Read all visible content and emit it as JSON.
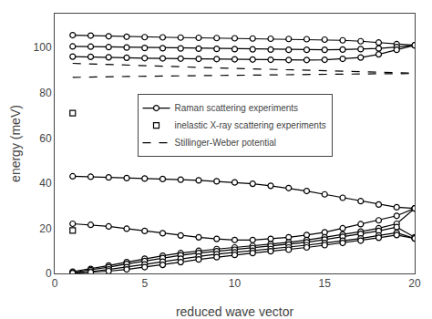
{
  "chart_data": {
    "type": "line",
    "xlabel": "reduced wave vector",
    "ylabel": "energy (meV)",
    "xlim": [
      0,
      20
    ],
    "ylim": [
      0,
      115
    ],
    "xticks": [
      0,
      5,
      10,
      15,
      20
    ],
    "yticks": [
      0,
      20,
      40,
      60,
      80,
      100
    ],
    "grid": false,
    "legend": "center",
    "color": "#000000",
    "series": [
      {
        "name": "Raman scattering experiments",
        "type": "line",
        "marker": "circle",
        "line_style": "solid",
        "x": [
          1,
          2,
          3,
          4,
          5,
          6,
          7,
          8,
          9,
          10,
          11,
          12,
          13,
          14,
          15,
          16,
          17,
          18,
          19,
          20
        ],
        "values": [
          105.5,
          105.3,
          105.0,
          104.8,
          104.6,
          104.5,
          104.4,
          104.3,
          104.2,
          104.1,
          104.0,
          103.9,
          103.8,
          103.7,
          103.5,
          103.2,
          102.8,
          102.2,
          101.5,
          101.0
        ]
      },
      {
        "name": "Raman scattering experiments",
        "type": "line",
        "marker": "circle",
        "line_style": "solid",
        "x": [
          1,
          2,
          3,
          4,
          5,
          6,
          7,
          8,
          9,
          10,
          11,
          12,
          13,
          14,
          15,
          16,
          17,
          18,
          19,
          20
        ],
        "values": [
          100.5,
          100.4,
          100.2,
          100.0,
          99.8,
          99.7,
          99.6,
          99.5,
          99.4,
          99.3,
          99.2,
          99.1,
          99.0,
          99.0,
          99.0,
          99.1,
          99.3,
          99.6,
          100.2,
          101.0
        ]
      },
      {
        "name": "Raman scattering experiments",
        "type": "line",
        "marker": "circle",
        "line_style": "solid",
        "x": [
          1,
          2,
          3,
          4,
          5,
          6,
          7,
          8,
          9,
          10,
          11,
          12,
          13,
          14,
          15,
          16,
          17,
          18,
          19,
          20
        ],
        "values": [
          96.0,
          95.9,
          95.7,
          95.5,
          95.3,
          95.2,
          95.1,
          95.0,
          94.9,
          94.8,
          94.7,
          94.6,
          94.5,
          94.5,
          94.6,
          95.0,
          95.6,
          97.0,
          99.0,
          101.0
        ]
      },
      {
        "name": "Raman scattering experiments",
        "type": "line",
        "marker": "circle",
        "line_style": "solid",
        "x": [
          1,
          2,
          3,
          4,
          5,
          6,
          7,
          8,
          9,
          10,
          11,
          12,
          13,
          14,
          15,
          16,
          17,
          18,
          19,
          20
        ],
        "values": [
          43.0,
          42.8,
          42.5,
          42.2,
          42.0,
          41.8,
          41.5,
          41.2,
          40.8,
          40.3,
          39.7,
          38.8,
          37.8,
          36.5,
          35.0,
          33.5,
          32.0,
          30.5,
          29.3,
          28.8
        ]
      },
      {
        "name": "Raman scattering experiments",
        "type": "line",
        "marker": "circle",
        "line_style": "solid",
        "x": [
          1,
          2,
          3,
          4,
          5,
          6,
          7,
          8,
          9,
          10,
          11,
          12,
          13,
          14,
          15,
          16,
          17,
          18,
          19,
          20
        ],
        "values": [
          22.0,
          21.5,
          20.8,
          19.8,
          18.8,
          17.8,
          16.8,
          16.0,
          15.3,
          14.8,
          14.8,
          15.3,
          16.0,
          17.0,
          18.2,
          20.0,
          21.8,
          23.5,
          25.5,
          28.8
        ]
      },
      {
        "name": "Raman scattering experiments",
        "type": "line",
        "marker": "circle",
        "line_style": "solid",
        "x": [
          1,
          2,
          3,
          4,
          5,
          6,
          7,
          8,
          9,
          10,
          11,
          12,
          13,
          14,
          15,
          16,
          17,
          18,
          19,
          20
        ],
        "values": [
          0.8,
          2.0,
          3.5,
          5.0,
          6.5,
          7.8,
          9.0,
          10.0,
          10.8,
          11.5,
          12.2,
          13.0,
          13.8,
          14.8,
          16.0,
          17.2,
          18.5,
          20.0,
          22.0,
          28.8
        ]
      },
      {
        "name": "Raman scattering experiments",
        "type": "line",
        "marker": "circle",
        "line_style": "solid",
        "x": [
          1,
          2,
          3,
          4,
          5,
          6,
          7,
          8,
          9,
          10,
          11,
          12,
          13,
          14,
          15,
          16,
          17,
          18,
          19,
          20
        ],
        "values": [
          0.5,
          1.5,
          2.8,
          4.2,
          5.5,
          6.8,
          8.0,
          9.0,
          9.8,
          10.5,
          11.2,
          12.0,
          12.8,
          13.8,
          15.0,
          16.2,
          17.5,
          18.8,
          20.5,
          16.0
        ]
      },
      {
        "name": "Raman scattering experiments",
        "type": "line",
        "marker": "circle",
        "line_style": "solid",
        "x": [
          1,
          2,
          3,
          4,
          5,
          6,
          7,
          8,
          9,
          10,
          11,
          12,
          13,
          14,
          15,
          16,
          17,
          18,
          19,
          20
        ],
        "values": [
          0.3,
          0.8,
          1.8,
          2.8,
          4.0,
          5.2,
          6.5,
          7.5,
          8.5,
          9.3,
          10.0,
          10.8,
          11.5,
          12.5,
          13.5,
          14.5,
          15.5,
          16.8,
          18.0,
          15.5
        ]
      },
      {
        "name": "Raman scattering experiments",
        "type": "line",
        "marker": "circle",
        "line_style": "solid",
        "x": [
          1,
          2,
          3,
          4,
          5,
          6,
          7,
          8,
          9,
          10,
          11,
          12,
          13,
          14,
          15,
          16,
          17,
          18,
          19,
          20
        ],
        "values": [
          0.1,
          0.5,
          1.0,
          1.8,
          2.8,
          3.8,
          5.0,
          6.2,
          7.2,
          8.2,
          9.0,
          9.8,
          10.5,
          11.5,
          12.5,
          13.5,
          14.5,
          15.8,
          17.0,
          15.5
        ]
      },
      {
        "name": "inelastic X-ray scattering experiments",
        "type": "scatter",
        "marker": "square",
        "x": [
          1,
          1
        ],
        "values": [
          71.0,
          19.0
        ]
      },
      {
        "name": "Stillinger-Weber potential",
        "type": "line",
        "line_style": "dashed",
        "x": [
          1,
          2,
          3,
          4,
          5,
          6,
          7,
          8,
          9,
          10,
          11,
          12,
          13,
          14,
          15,
          16,
          17,
          18,
          19,
          20
        ],
        "values": [
          93.0,
          92.8,
          92.5,
          92.2,
          92.0,
          91.8,
          91.5,
          91.2,
          91.0,
          90.8,
          90.5,
          90.3,
          90.1,
          89.9,
          89.7,
          89.5,
          89.3,
          89.1,
          88.9,
          88.7
        ]
      },
      {
        "name": "Stillinger-Weber potential",
        "type": "line",
        "line_style": "dashed",
        "x": [
          1,
          2,
          3,
          4,
          5,
          6,
          7,
          8,
          9,
          10,
          11,
          12,
          13,
          14,
          15,
          16,
          17,
          18,
          19,
          20
        ],
        "values": [
          86.8,
          87.0,
          87.1,
          87.2,
          87.3,
          87.4,
          87.5,
          87.6,
          87.7,
          87.8,
          87.9,
          88.0,
          88.0,
          88.1,
          88.2,
          88.3,
          88.3,
          88.4,
          88.4,
          88.5
        ]
      }
    ]
  }
}
